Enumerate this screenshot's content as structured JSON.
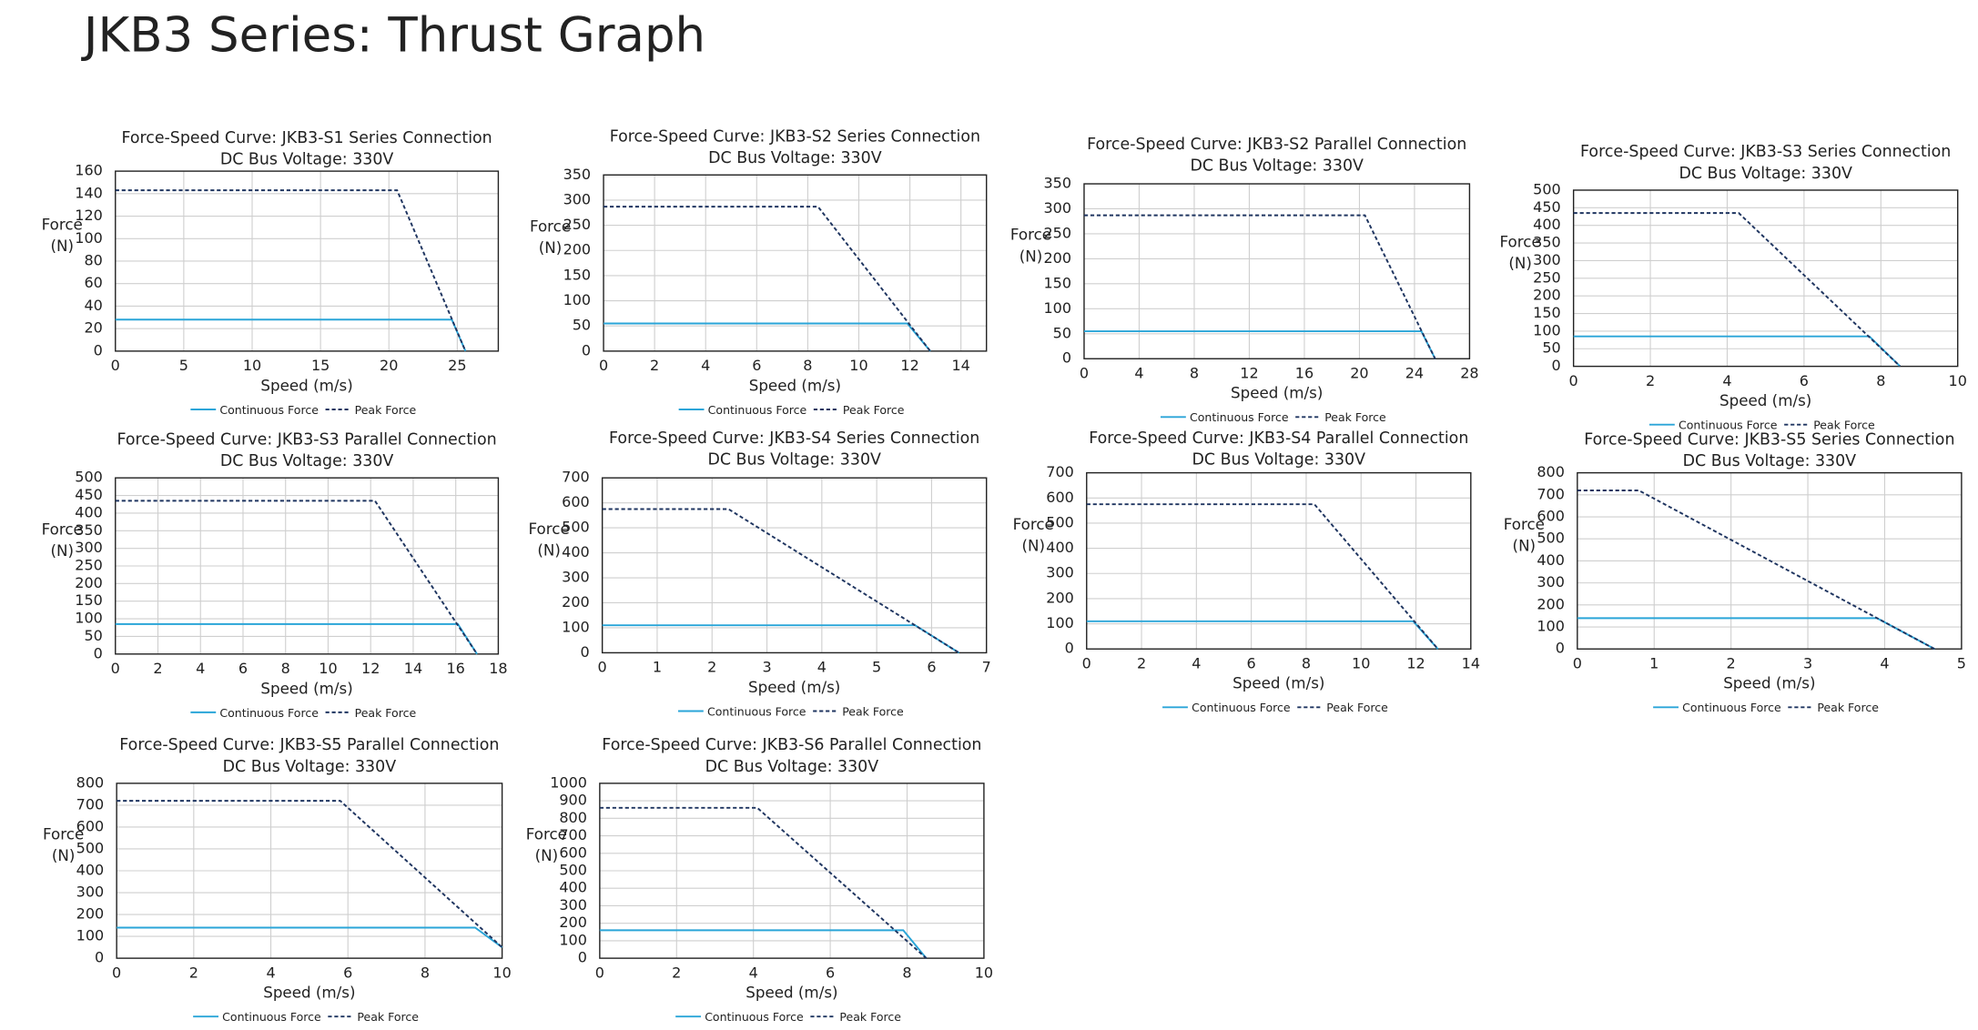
{
  "page_title": "JKB3 Series: Thrust Graph",
  "chart_data": [
    {
      "type": "line",
      "title": "Force-Speed Curve: JKB3-S1 Series Connection",
      "subtitle": "DC Bus Voltage: 330V",
      "xlabel": "Speed (m/s)",
      "ylabel": [
        "Force",
        "(N)"
      ],
      "xlim": [
        0,
        28
      ],
      "xticks": [
        0,
        5,
        10,
        15,
        20,
        25
      ],
      "ylim": [
        0,
        160
      ],
      "yticks": [
        0,
        20,
        40,
        60,
        80,
        100,
        120,
        140,
        160
      ],
      "grid": true,
      "series": [
        {
          "name": "Continuous Force",
          "color": "#2aa5d8",
          "dash": false,
          "x": [
            0,
            24.6,
            25.6
          ],
          "values": [
            28,
            28,
            0
          ]
        },
        {
          "name": "Peak Force",
          "color": "#1f3560",
          "dash": true,
          "x": [
            0,
            20.6,
            25.6
          ],
          "values": [
            143,
            143,
            0
          ]
        }
      ]
    },
    {
      "type": "line",
      "title": "Force-Speed Curve: JKB3-S2 Series Connection",
      "subtitle": "DC Bus Voltage: 330V",
      "xlabel": "Speed (m/s)",
      "ylabel": [
        "Force",
        "(N)"
      ],
      "xlim": [
        0,
        15
      ],
      "xticks": [
        0,
        2,
        4,
        6,
        8,
        10,
        12,
        14
      ],
      "ylim": [
        0,
        350
      ],
      "yticks": [
        0,
        50,
        100,
        150,
        200,
        250,
        300,
        350
      ],
      "grid": true,
      "series": [
        {
          "name": "Continuous Force",
          "color": "#2aa5d8",
          "dash": false,
          "x": [
            0,
            11.9,
            12.8
          ],
          "values": [
            55,
            55,
            0
          ]
        },
        {
          "name": "Peak Force",
          "color": "#1f3560",
          "dash": true,
          "x": [
            0,
            8.4,
            12.8
          ],
          "values": [
            287,
            287,
            0
          ]
        }
      ]
    },
    {
      "type": "line",
      "title": "Force-Speed Curve: JKB3-S2 Parallel Connection",
      "subtitle": "DC Bus Voltage: 330V",
      "xlabel": "Speed (m/s)",
      "ylabel": [
        "Force",
        "(N)"
      ],
      "xlim": [
        0,
        28
      ],
      "xticks": [
        0,
        4,
        8,
        12,
        16,
        20,
        24,
        28
      ],
      "ylim": [
        0,
        350
      ],
      "yticks": [
        0,
        50,
        100,
        150,
        200,
        250,
        300,
        350
      ],
      "grid": true,
      "series": [
        {
          "name": "Continuous Force",
          "color": "#2aa5d8",
          "dash": false,
          "x": [
            0,
            24.5,
            25.5
          ],
          "values": [
            55,
            55,
            0
          ]
        },
        {
          "name": "Peak Force",
          "color": "#1f3560",
          "dash": true,
          "x": [
            0,
            20.4,
            25.5
          ],
          "values": [
            287,
            287,
            0
          ]
        }
      ]
    },
    {
      "type": "line",
      "title": "Force-Speed Curve: JKB3-S3 Series Connection",
      "subtitle": "DC Bus Voltage: 330V",
      "xlabel": "Speed (m/s)",
      "ylabel": [
        "Force",
        "(N)"
      ],
      "xlim": [
        0,
        10
      ],
      "xticks": [
        0,
        2,
        4,
        6,
        8,
        10
      ],
      "ylim": [
        0,
        500
      ],
      "yticks": [
        0,
        50,
        100,
        150,
        200,
        250,
        300,
        350,
        400,
        450,
        500
      ],
      "grid": true,
      "series": [
        {
          "name": "Continuous Force",
          "color": "#2aa5d8",
          "dash": false,
          "x": [
            0,
            7.7,
            8.5
          ],
          "values": [
            85,
            85,
            0
          ]
        },
        {
          "name": "Peak Force",
          "color": "#1f3560",
          "dash": true,
          "x": [
            0,
            4.3,
            8.5
          ],
          "values": [
            435,
            435,
            0
          ]
        }
      ]
    },
    {
      "type": "line",
      "title": "Force-Speed Curve: JKB3-S3 Parallel Connection",
      "subtitle": "DC Bus Voltage: 330V",
      "xlabel": "Speed (m/s)",
      "ylabel": [
        "Force",
        "(N)"
      ],
      "xlim": [
        0,
        18
      ],
      "xticks": [
        0,
        2,
        4,
        6,
        8,
        10,
        12,
        14,
        16,
        18
      ],
      "ylim": [
        0,
        500
      ],
      "yticks": [
        0,
        50,
        100,
        150,
        200,
        250,
        300,
        350,
        400,
        450,
        500
      ],
      "grid": true,
      "series": [
        {
          "name": "Continuous Force",
          "color": "#2aa5d8",
          "dash": false,
          "x": [
            0,
            16.1,
            17.0
          ],
          "values": [
            85,
            85,
            0
          ]
        },
        {
          "name": "Peak Force",
          "color": "#1f3560",
          "dash": true,
          "x": [
            0,
            12.2,
            17.0
          ],
          "values": [
            435,
            435,
            0
          ]
        }
      ]
    },
    {
      "type": "line",
      "title": "Force-Speed Curve: JKB3-S4 Series Connection",
      "subtitle": "DC Bus Voltage: 330V",
      "xlabel": "Speed (m/s)",
      "ylabel": [
        "Force",
        "(N)"
      ],
      "xlim": [
        0,
        7
      ],
      "xticks": [
        0,
        1,
        2,
        3,
        4,
        5,
        6,
        7
      ],
      "ylim": [
        0,
        700
      ],
      "yticks": [
        0,
        100,
        200,
        300,
        400,
        500,
        600,
        700
      ],
      "grid": true,
      "series": [
        {
          "name": "Continuous Force",
          "color": "#2aa5d8",
          "dash": false,
          "x": [
            0,
            5.7,
            6.5
          ],
          "values": [
            110,
            110,
            0
          ]
        },
        {
          "name": "Peak Force",
          "color": "#1f3560",
          "dash": true,
          "x": [
            0,
            2.3,
            6.5
          ],
          "values": [
            575,
            575,
            0
          ]
        }
      ]
    },
    {
      "type": "line",
      "title": "Force-Speed Curve: JKB3-S4 Parallel Connection",
      "subtitle": "DC Bus Voltage: 330V",
      "xlabel": "Speed (m/s)",
      "ylabel": [
        "Force",
        "(N)"
      ],
      "xlim": [
        0,
        14
      ],
      "xticks": [
        0,
        2,
        4,
        6,
        8,
        10,
        12,
        14
      ],
      "ylim": [
        0,
        700
      ],
      "yticks": [
        0,
        100,
        200,
        300,
        400,
        500,
        600,
        700
      ],
      "grid": true,
      "series": [
        {
          "name": "Continuous Force",
          "color": "#2aa5d8",
          "dash": false,
          "x": [
            0,
            11.9,
            12.8
          ],
          "values": [
            110,
            110,
            0
          ]
        },
        {
          "name": "Peak Force",
          "color": "#1f3560",
          "dash": true,
          "x": [
            0,
            8.3,
            12.8
          ],
          "values": [
            575,
            575,
            0
          ]
        }
      ]
    },
    {
      "type": "line",
      "title": "Force-Speed Curve: JKB3-S5 Series Connection",
      "subtitle": "DC Bus Voltage: 330V",
      "xlabel": "Speed (m/s)",
      "ylabel": [
        "Force",
        "(N)"
      ],
      "xlim": [
        0,
        5
      ],
      "xticks": [
        0,
        1,
        2,
        3,
        4,
        5
      ],
      "ylim": [
        0,
        800
      ],
      "yticks": [
        0,
        100,
        200,
        300,
        400,
        500,
        600,
        700,
        800
      ],
      "grid": true,
      "series": [
        {
          "name": "Continuous Force",
          "color": "#2aa5d8",
          "dash": false,
          "x": [
            0,
            3.9,
            4.65
          ],
          "values": [
            140,
            140,
            0
          ]
        },
        {
          "name": "Peak Force",
          "color": "#1f3560",
          "dash": true,
          "x": [
            0,
            0.8,
            4.65
          ],
          "values": [
            720,
            720,
            0
          ]
        }
      ]
    },
    {
      "type": "line",
      "title": "Force-Speed Curve: JKB3-S5 Parallel Connection",
      "subtitle": "DC Bus Voltage: 330V",
      "xlabel": "Speed (m/s)",
      "ylabel": [
        "Force",
        "(N)"
      ],
      "xlim": [
        0,
        10
      ],
      "xticks": [
        0,
        2,
        4,
        6,
        8,
        10
      ],
      "ylim": [
        0,
        800
      ],
      "yticks": [
        0,
        100,
        200,
        300,
        400,
        500,
        600,
        700,
        800
      ],
      "grid": true,
      "series": [
        {
          "name": "Continuous Force",
          "color": "#2aa5d8",
          "dash": false,
          "x": [
            0,
            9.3,
            10
          ],
          "values": [
            140,
            140,
            50
          ]
        },
        {
          "name": "Peak Force",
          "color": "#1f3560",
          "dash": true,
          "x": [
            0,
            5.8,
            10
          ],
          "values": [
            720,
            720,
            50
          ]
        }
      ]
    },
    {
      "type": "line",
      "title": "Force-Speed Curve: JKB3-S6 Parallel Connection",
      "subtitle": "DC Bus Voltage: 330V",
      "xlabel": "Speed (m/s)",
      "ylabel": [
        "Force",
        "(N)"
      ],
      "xlim": [
        0,
        10
      ],
      "xticks": [
        0,
        2,
        4,
        6,
        8,
        10
      ],
      "ylim": [
        0,
        1000
      ],
      "yticks": [
        0,
        100,
        200,
        300,
        400,
        500,
        600,
        700,
        800,
        900,
        1000
      ],
      "grid": true,
      "series": [
        {
          "name": "Continuous Force",
          "color": "#2aa5d8",
          "dash": false,
          "x": [
            0,
            7.9,
            8.5
          ],
          "values": [
            160,
            160,
            0
          ]
        },
        {
          "name": "Peak Force",
          "color": "#1f3560",
          "dash": true,
          "x": [
            0,
            4.1,
            8.5
          ],
          "values": [
            860,
            860,
            0
          ]
        }
      ]
    }
  ]
}
